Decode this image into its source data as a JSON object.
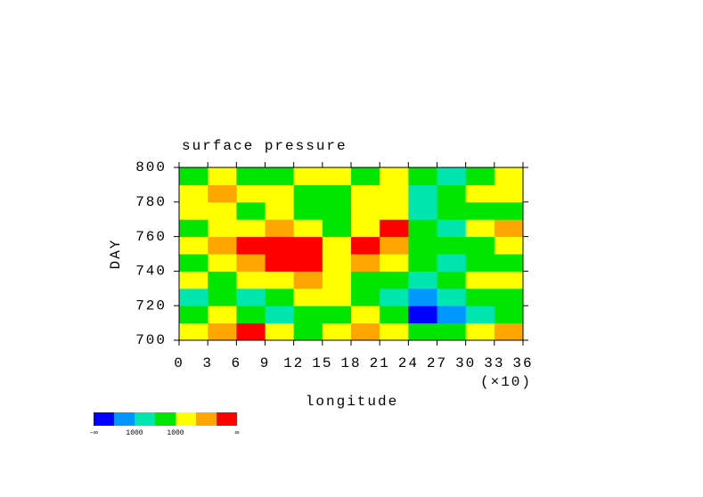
{
  "chart_data": {
    "type": "contour",
    "title": "surface pressure",
    "xlabel": "longitude",
    "xmultiplier": "(×10)",
    "ylabel": "DAY",
    "x": [
      1.5,
      4.5,
      7.5,
      10.5,
      13.5,
      16.5,
      19.5,
      22.5,
      25.5,
      28.5,
      31.5,
      34.5
    ],
    "y": [
      705,
      715,
      725,
      735,
      745,
      755,
      765,
      775,
      785,
      795
    ],
    "z": [
      [
        5,
        6,
        7,
        5,
        4,
        5,
        6,
        5,
        4,
        4,
        5,
        6
      ],
      [
        4,
        5,
        4,
        3,
        4,
        4,
        5,
        4,
        1,
        2,
        3,
        4
      ],
      [
        3,
        4,
        3,
        4,
        5,
        5,
        4,
        3,
        2,
        3,
        4,
        4
      ],
      [
        5,
        4,
        5,
        5,
        6,
        5,
        4,
        4,
        3,
        4,
        5,
        5
      ],
      [
        4,
        5,
        6,
        7,
        7,
        5,
        6,
        5,
        4,
        3,
        4,
        4
      ],
      [
        5,
        6,
        7,
        7,
        7,
        5,
        7,
        6,
        4,
        4,
        4,
        5
      ],
      [
        4,
        5,
        5,
        6,
        5,
        4,
        5,
        7,
        4,
        3,
        5,
        6
      ],
      [
        5,
        5,
        4,
        5,
        4,
        4,
        5,
        5,
        3,
        4,
        4,
        4
      ],
      [
        5,
        6,
        5,
        5,
        4,
        4,
        5,
        5,
        3,
        4,
        5,
        5
      ],
      [
        4,
        5,
        4,
        4,
        5,
        5,
        4,
        5,
        4,
        3,
        4,
        5
      ]
    ],
    "colors": [
      "#0000ff",
      "#0096ff",
      "#00e6b0",
      "#00e600",
      "#ffff00",
      "#ffa500",
      "#ff0000"
    ],
    "colorbar_labels": [
      "-∞",
      "1000",
      "1000",
      "∞"
    ],
    "xlim": [
      0,
      36
    ],
    "xticks": [
      0,
      3,
      6,
      9,
      12,
      15,
      18,
      21,
      24,
      27,
      30,
      33,
      36
    ],
    "ylim": [
      700,
      800
    ],
    "yticks": [
      700,
      720,
      740,
      760,
      780,
      800
    ]
  }
}
